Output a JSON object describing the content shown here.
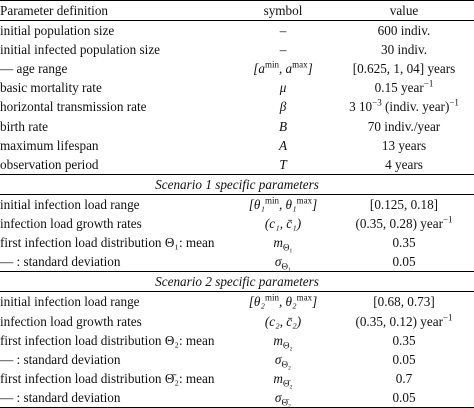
{
  "table": {
    "header": [
      "Parameter definition",
      "symbol",
      "value"
    ],
    "sections": [
      {
        "rows": [
          [
            "initial population size",
            "–",
            "600 indiv."
          ],
          [
            "initial infected population size",
            "–",
            "30 indiv."
          ],
          [
            "— age range",
            [
              "[a",
              {
                "sup": "min"
              },
              ", a",
              {
                "sup": "max"
              },
              "]"
            ],
            "[0.625, 1, 04] years"
          ],
          [
            "basic mortality rate",
            "μ",
            [
              "0.15 year",
              {
                "sup": "−1"
              }
            ]
          ],
          [
            "horizontal transmission rate",
            "β",
            [
              "3 10",
              {
                "sup": "−3"
              },
              " (indiv. year)",
              {
                "sup": "−1"
              }
            ]
          ],
          [
            "birth rate",
            "B",
            "70 indiv./year"
          ],
          [
            "maximum lifespan",
            "A",
            "13 years"
          ],
          [
            "observation period",
            "T",
            "4 years"
          ]
        ]
      },
      {
        "title": "Scenario 1 specific parameters",
        "rows": [
          [
            "initial infection load range",
            [
              "[θ₁",
              {
                "sup": "min"
              },
              ", θ₁",
              {
                "sup": "max"
              },
              "]"
            ],
            "[0.125, 0.18]"
          ],
          [
            "infection load growth rates",
            "(c₁, c̄₁)",
            [
              "(0.35, 0.28) year",
              {
                "sup": "−1"
              }
            ]
          ],
          [
            "first infection load distribution Θ₁: mean",
            [
              "m",
              {
                "sub": "Θ₁"
              }
            ],
            "0.35"
          ],
          [
            "— : standard deviation",
            [
              "σ",
              {
                "sub": "Θ₁"
              }
            ],
            "0.05"
          ]
        ]
      },
      {
        "title": "Scenario 2 specific parameters",
        "rows": [
          [
            "initial infection load range",
            [
              "[θ₂",
              {
                "sup": "min"
              },
              ", θ₂",
              {
                "sup": "max"
              },
              "]"
            ],
            "[0.68, 0.73]"
          ],
          [
            "infection load growth rates",
            "(c₂, c̄₂)",
            [
              "(0.35, 0.12) year",
              {
                "sup": "−1"
              }
            ]
          ],
          [
            "first infection load distribution Θ₂: mean",
            [
              "m",
              {
                "sub": "Θ₂"
              }
            ],
            "0.35"
          ],
          [
            "— : standard deviation",
            [
              "σ",
              {
                "sub": "Θ₂"
              }
            ],
            "0.05"
          ],
          [
            "first infection load distribution Θ̄₂: mean",
            [
              "m",
              {
                "sub": "Θ̄₂"
              }
            ],
            "0.7"
          ],
          [
            "— : standard deviation",
            [
              "σ",
              {
                "sub": "Θ̄₂"
              }
            ],
            "0.05"
          ]
        ]
      }
    ]
  }
}
